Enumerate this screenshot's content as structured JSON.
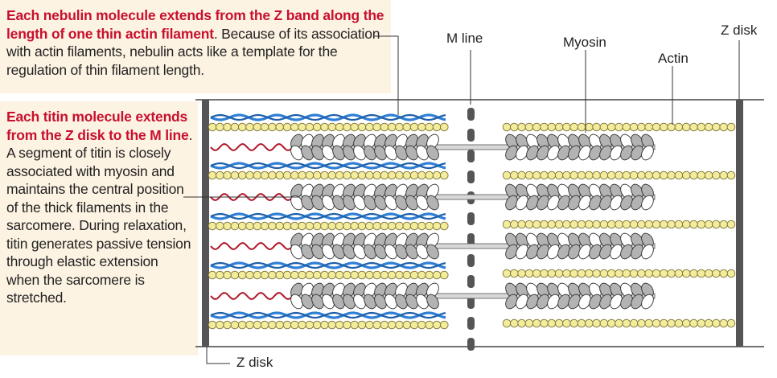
{
  "nebulin_caption": {
    "bold": "Each nebulin molecule extends from the Z band along the length of one thin actin filament",
    "rest": ". Because of its association with actin filaments, nebulin acts like a template for the regulation of thin filament length."
  },
  "titin_caption": {
    "bold": "Each titin molecule extends from the Z disk to the M line",
    "rest": ". A segment of titin is closely associated with myosin and maintains the central position of the thick filaments in the sarcomere. During relaxation, titin generates passive tension through elastic extension when the sarcomere is stretched."
  },
  "labels": {
    "m_line": "M  line",
    "myosin": "Myosin",
    "actin": "Actin",
    "z_disk_top": "Z disk",
    "z_disk_bottom": "Z disk"
  },
  "colors": {
    "caption_box": "#fdf3e3",
    "emphasis_text": "#c8102e",
    "nebulin": "#2f7fd6",
    "actin_bead": "#f3ec9c",
    "titin": "#b0182a",
    "myosin_gray": "#b3b3b3",
    "z_disk": "#555555"
  }
}
